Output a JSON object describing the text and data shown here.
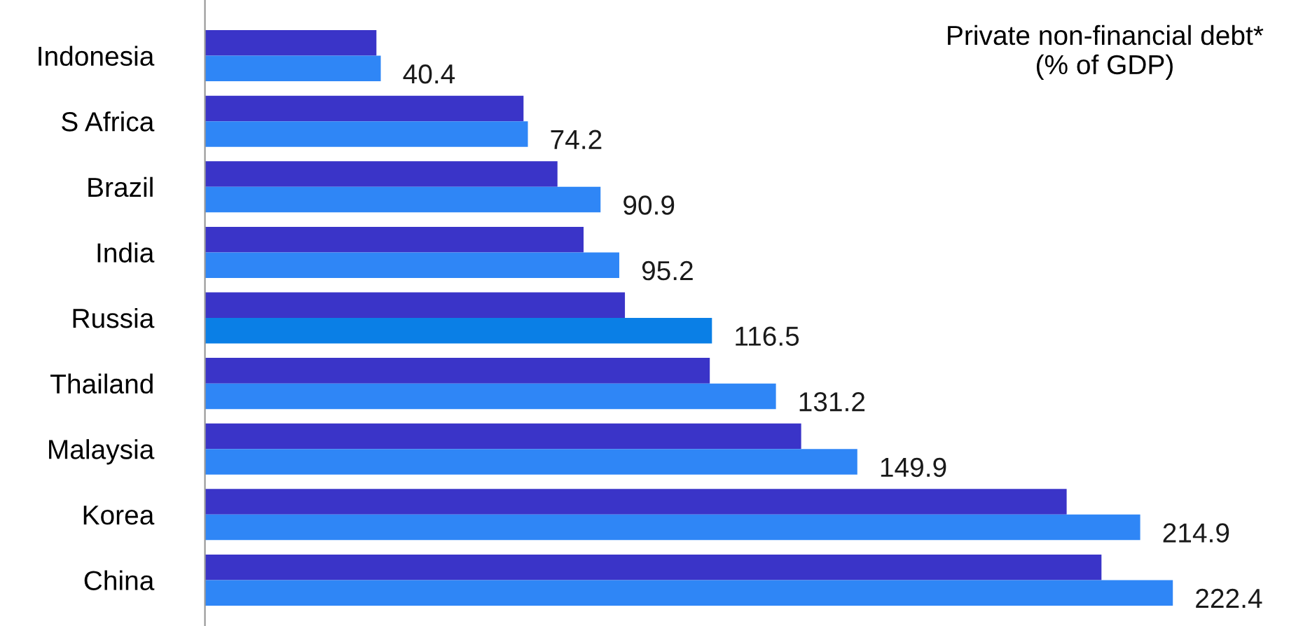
{
  "chart_data": {
    "type": "bar",
    "orientation": "horizontal",
    "title": "Private non-financial debt*\n(% of GDP)",
    "categories": [
      "Indonesia",
      "S Africa",
      "Brazil",
      "India",
      "Russia",
      "Thailand",
      "Malaysia",
      "Korea",
      "China"
    ],
    "series": [
      {
        "color": "#3a34c8",
        "values": [
          39.4,
          73.2,
          81,
          87,
          96.5,
          116,
          137,
          198,
          206
        ]
      },
      {
        "colors": [
          "#2f86f6",
          "#2f86f6",
          "#2f86f6",
          "#2f86f6",
          "#0a7fe6",
          "#2f86f6",
          "#2f86f6",
          "#2f86f6",
          "#2f86f6"
        ],
        "values": [
          40.4,
          74.2,
          90.9,
          95.2,
          116.5,
          131.2,
          149.9,
          214.9,
          222.4
        ],
        "value_labels": [
          "40.4",
          "74.2",
          "90.9",
          "95.2",
          "116.5",
          "131.2",
          "149.9",
          "214.9",
          "222.4"
        ]
      }
    ],
    "tick_labels": "y",
    "grid": false,
    "legend": false
  }
}
